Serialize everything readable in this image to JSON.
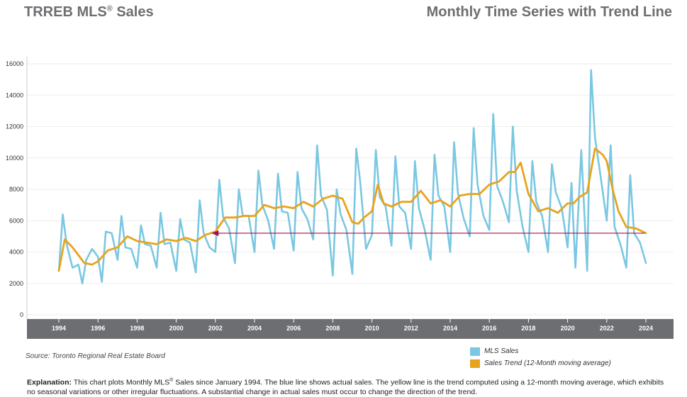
{
  "header": {
    "title_prefix": "TRREB MLS",
    "title_reg": "®",
    "title_suffix": " Sales",
    "subtitle": "Monthly Time Series with Trend Line"
  },
  "colors": {
    "sales": "#7ac7e2",
    "trend": "#e8a31c",
    "arrow": "#a3104a",
    "axis_band": "#6d6e71",
    "grid": "#eeeeee"
  },
  "footer": {
    "source": "Source: Toronto Regional Real Estate Board",
    "explanation_label": "Explanation:",
    "explanation_text1": " This chart plots Monthly MLS",
    "explanation_reg": "®",
    "explanation_text2": " Sales since January 1994. The blue line shows actual sales. The yellow line is the trend computed using a 12-month moving average, which exhibits no seasonal variations or other irregular fluctuations. A substantial change in actual sales must occur to change the direction of the trend."
  },
  "chart_data": {
    "type": "line",
    "xlim": [
      1994,
      2024
    ],
    "ylim": [
      0,
      16000
    ],
    "yticks": [
      0,
      2000,
      4000,
      6000,
      8000,
      10000,
      12000,
      14000,
      16000
    ],
    "xticks": [
      "1994",
      "1996",
      "1998",
      "2000",
      "2002",
      "2004",
      "2006",
      "2008",
      "2010",
      "2012",
      "2014",
      "2016",
      "2018",
      "2020",
      "2022",
      "2024"
    ],
    "grid": true,
    "legend_position": "bottom-right",
    "annotation": {
      "type": "arrow",
      "from": [
        2024,
        5200
      ],
      "to": [
        2001.8,
        5200
      ]
    },
    "series": [
      {
        "name": "MLS Sales",
        "x": [
          1994.0,
          1994.2,
          1994.4,
          1994.7,
          1995.0,
          1995.2,
          1995.4,
          1995.7,
          1996.0,
          1996.2,
          1996.4,
          1996.7,
          1997.0,
          1997.2,
          1997.4,
          1997.7,
          1998.0,
          1998.2,
          1998.4,
          1998.7,
          1999.0,
          1999.2,
          1999.4,
          1999.7,
          2000.0,
          2000.2,
          2000.4,
          2000.7,
          2001.0,
          2001.2,
          2001.4,
          2001.7,
          2002.0,
          2002.2,
          2002.4,
          2002.7,
          2003.0,
          2003.2,
          2003.4,
          2003.7,
          2004.0,
          2004.2,
          2004.4,
          2004.7,
          2005.0,
          2005.2,
          2005.4,
          2005.7,
          2006.0,
          2006.2,
          2006.4,
          2006.7,
          2007.0,
          2007.2,
          2007.4,
          2007.7,
          2008.0,
          2008.2,
          2008.4,
          2008.7,
          2009.0,
          2009.2,
          2009.4,
          2009.7,
          2010.0,
          2010.2,
          2010.4,
          2010.7,
          2011.0,
          2011.2,
          2011.4,
          2011.7,
          2012.0,
          2012.2,
          2012.4,
          2012.7,
          2013.0,
          2013.2,
          2013.4,
          2013.7,
          2014.0,
          2014.2,
          2014.4,
          2014.7,
          2015.0,
          2015.2,
          2015.4,
          2015.7,
          2016.0,
          2016.2,
          2016.4,
          2016.7,
          2017.0,
          2017.2,
          2017.4,
          2017.7,
          2018.0,
          2018.2,
          2018.4,
          2018.7,
          2019.0,
          2019.2,
          2019.4,
          2019.7,
          2020.0,
          2020.2,
          2020.4,
          2020.7,
          2021.0,
          2021.2,
          2021.4,
          2021.7,
          2022.0,
          2022.2,
          2022.4,
          2022.7,
          2023.0,
          2023.2,
          2023.4,
          2023.7,
          2024.0
        ],
        "y": [
          2800,
          6400,
          4500,
          3000,
          3200,
          2000,
          3500,
          4200,
          3700,
          2100,
          5300,
          5200,
          3500,
          6300,
          4300,
          4200,
          3000,
          5700,
          4500,
          4400,
          3000,
          6500,
          4500,
          4600,
          2800,
          6100,
          4800,
          4600,
          2700,
          7300,
          5200,
          4300,
          4000,
          8600,
          6200,
          5500,
          3300,
          8000,
          6300,
          6300,
          4000,
          9200,
          7000,
          6000,
          4200,
          9000,
          6600,
          6500,
          4100,
          9100,
          6800,
          6100,
          4800,
          10800,
          7600,
          6700,
          2500,
          8000,
          6400,
          5400,
          2600,
          10600,
          8500,
          4200,
          5100,
          10500,
          7500,
          6900,
          4400,
          10100,
          6900,
          6500,
          4200,
          9800,
          6800,
          5400,
          3500,
          10200,
          7600,
          6900,
          4000,
          11000,
          7700,
          6100,
          5000,
          11900,
          8300,
          6300,
          5400,
          12800,
          8200,
          7200,
          5900,
          12000,
          7900,
          5600,
          4000,
          9800,
          7200,
          6300,
          4000,
          9600,
          7800,
          6800,
          4300,
          8400,
          3000,
          10500,
          2800,
          15600,
          11300,
          8700,
          6000,
          10800,
          5600,
          4500,
          3000,
          8900,
          5200,
          4600,
          3300
        ]
      },
      {
        "name": "Sales Trend (12-Month moving average)",
        "x": [
          1994.0,
          1994.3,
          1994.7,
          1995.0,
          1995.3,
          1995.7,
          1996.0,
          1996.5,
          1997.0,
          1997.5,
          1998.0,
          1998.5,
          1999.0,
          1999.5,
          2000.0,
          2000.5,
          2001.0,
          2001.5,
          2002.0,
          2002.5,
          2003.0,
          2003.5,
          2004.0,
          2004.5,
          2005.0,
          2005.5,
          2006.0,
          2006.5,
          2007.0,
          2007.5,
          2008.0,
          2008.5,
          2009.0,
          2009.3,
          2009.6,
          2010.0,
          2010.3,
          2010.6,
          2011.0,
          2011.5,
          2012.0,
          2012.5,
          2013.0,
          2013.5,
          2014.0,
          2014.5,
          2015.0,
          2015.5,
          2016.0,
          2016.5,
          2017.0,
          2017.3,
          2017.6,
          2018.0,
          2018.5,
          2019.0,
          2019.5,
          2020.0,
          2020.3,
          2020.6,
          2021.0,
          2021.4,
          2021.8,
          2022.0,
          2022.3,
          2022.6,
          2023.0,
          2023.5,
          2024.0
        ],
        "y": [
          2800,
          4800,
          4300,
          3800,
          3300,
          3200,
          3400,
          4100,
          4300,
          5000,
          4700,
          4600,
          4500,
          4800,
          4700,
          4900,
          4700,
          5100,
          5300,
          6200,
          6200,
          6300,
          6300,
          7000,
          6800,
          6900,
          6800,
          7200,
          6900,
          7400,
          7600,
          7400,
          5900,
          5800,
          6200,
          6600,
          8300,
          7100,
          6900,
          7200,
          7200,
          7900,
          7100,
          7300,
          6900,
          7600,
          7700,
          7700,
          8300,
          8500,
          9100,
          9100,
          9700,
          7700,
          6600,
          6800,
          6500,
          7100,
          7100,
          7500,
          7800,
          10600,
          10200,
          9800,
          8000,
          6600,
          5600,
          5500,
          5200
        ]
      }
    ]
  }
}
